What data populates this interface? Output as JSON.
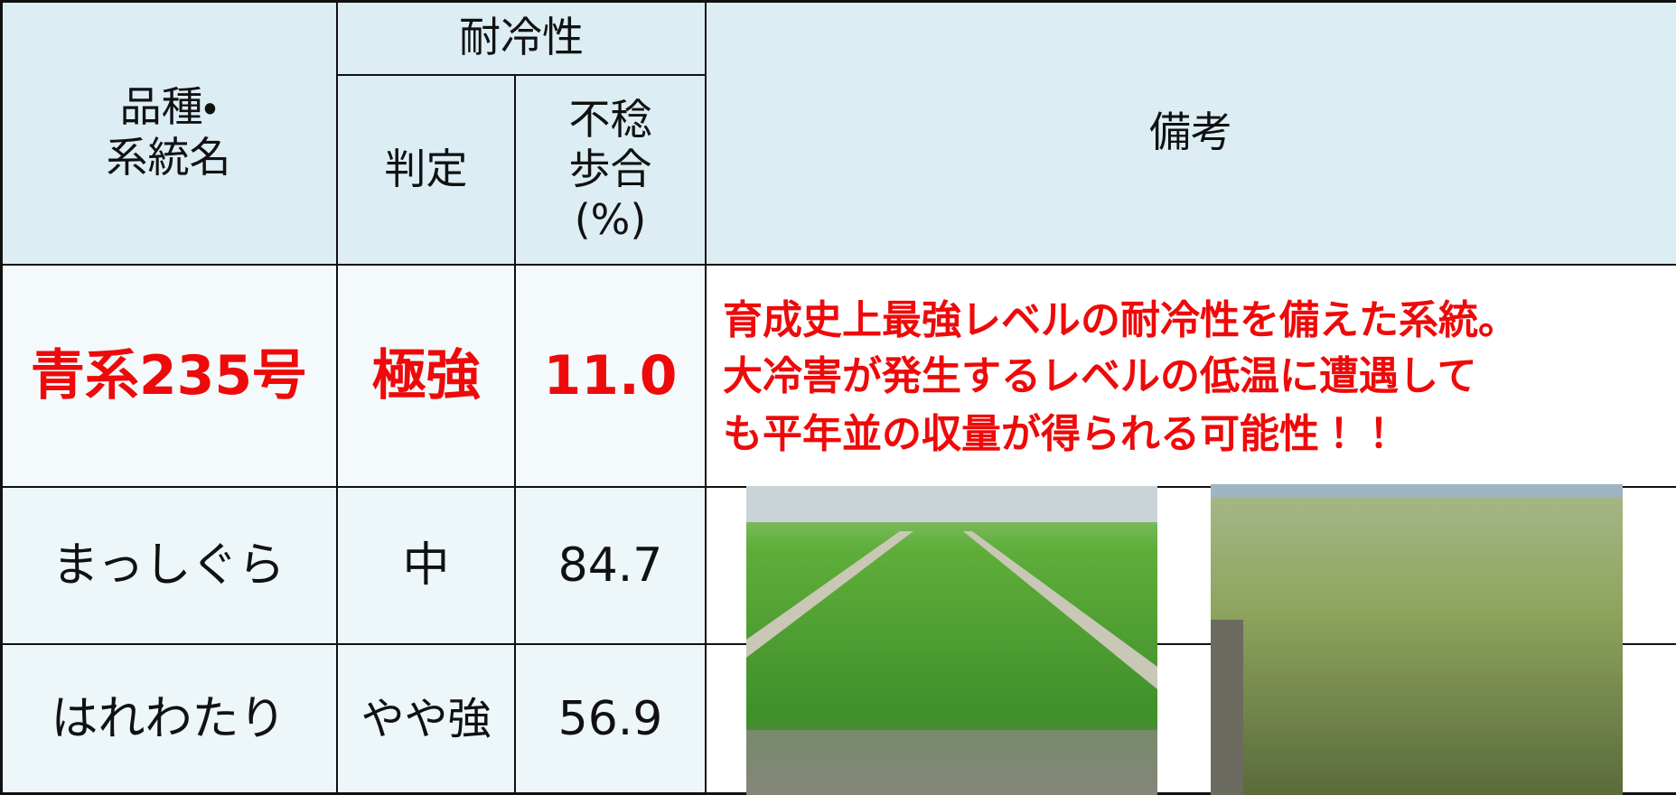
{
  "table": {
    "header": {
      "variety": [
        "品種・",
        "系統名"
      ],
      "cold_tolerance": "耐冷性",
      "judgement": "判定",
      "sterility": [
        "不稔",
        "歩合",
        "(%)"
      ],
      "remarks": "備考"
    },
    "rows": [
      [
        "青系235号",
        "極強",
        "11.0"
      ],
      [
        "まっしぐら",
        "中",
        "84.7"
      ],
      [
        "はれわたり",
        "やや強",
        "56.9"
      ]
    ],
    "highlight_remark": [
      "育成史上最強レベルの耐冷性を備えた系統。",
      "大冷害が発生するレベルの低温に遭遇して",
      "も平年並の収量が得られる可能性！！"
    ]
  }
}
